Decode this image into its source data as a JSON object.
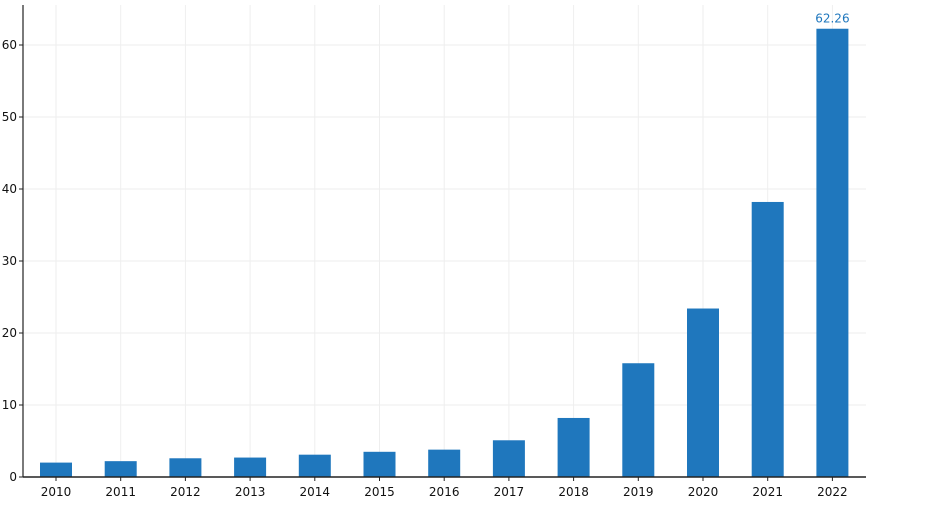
{
  "chart_data": {
    "type": "bar",
    "categories": [
      "2010",
      "2011",
      "2012",
      "2013",
      "2014",
      "2015",
      "2016",
      "2017",
      "2018",
      "2019",
      "2020",
      "2021",
      "2022"
    ],
    "values": [
      2.0,
      2.2,
      2.6,
      2.7,
      3.1,
      3.5,
      3.8,
      5.1,
      8.2,
      15.8,
      23.4,
      38.2,
      62.26
    ],
    "ylim": [
      0,
      65
    ],
    "y_ticks": [
      0,
      10,
      20,
      30,
      40,
      50,
      60
    ],
    "data_labels": [
      {
        "category": "2022",
        "text": "62.26"
      }
    ],
    "grid": true,
    "bar_color": "#1f77bd",
    "label_color": "#1f77bd",
    "axis_color": "#222222",
    "grid_color": "#eeeeee"
  }
}
